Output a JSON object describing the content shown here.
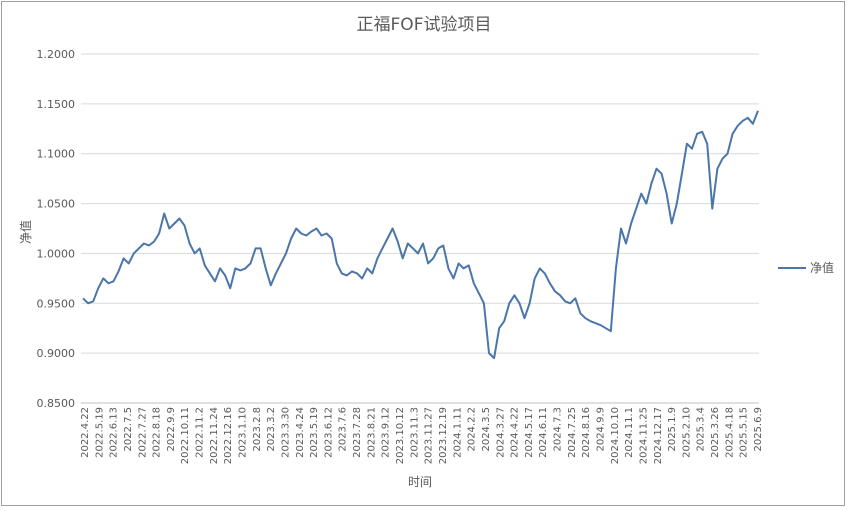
{
  "chart_data": {
    "type": "line",
    "title": "正福FOF试验项目",
    "xlabel": "时间",
    "ylabel": "净值",
    "ylim": [
      0.85,
      1.2
    ],
    "y_ticks": [
      "0.8500",
      "0.9000",
      "0.9500",
      "1.0000",
      "1.0500",
      "1.1000",
      "1.1500",
      "1.2000"
    ],
    "grid": "horizontal",
    "legend_position": "right",
    "x_tick_labels": [
      "2022.4.22",
      "2022.5.19",
      "2022.6.13",
      "2022.7.5",
      "2022.7.27",
      "2022.8.18",
      "2022.9.9",
      "2022.10.11",
      "2022.11.2",
      "2022.11.24",
      "2022.12.16",
      "2023.1.10",
      "2023.2.8",
      "2023.3.2",
      "2023.3.30",
      "2023.4.24",
      "2023.5.19",
      "2023.6.12",
      "2023.7.6",
      "2023.7.28",
      "2023.8.21",
      "2023.9.12",
      "2023.10.12",
      "2023.11.3",
      "2023.11.27",
      "2023.12.19",
      "2024.1.11",
      "2024.2.2",
      "2024.3.5",
      "2024.3.27",
      "2024.4.22",
      "2024.5.17",
      "2024.6.11",
      "2024.7.3",
      "2024.7.25",
      "2024.8.16",
      "2024.9.9",
      "2024.10.10",
      "2024.11.1",
      "2024.11.25",
      "2024.12.17",
      "2025.1.9",
      "2025.2.10",
      "2025.3.4",
      "2025.3.26",
      "2025.4.18",
      "2025.5.15",
      "2025.6.9"
    ],
    "series": [
      {
        "name": "净值",
        "color": "#4a76aa",
        "values": [
          0.955,
          0.95,
          0.952,
          0.965,
          0.975,
          0.97,
          0.972,
          0.982,
          0.995,
          0.99,
          1.0,
          1.005,
          1.01,
          1.008,
          1.012,
          1.02,
          1.04,
          1.025,
          1.03,
          1.035,
          1.028,
          1.01,
          1.0,
          1.005,
          0.988,
          0.98,
          0.972,
          0.985,
          0.978,
          0.965,
          0.985,
          0.983,
          0.985,
          0.99,
          1.005,
          1.005,
          0.985,
          0.968,
          0.98,
          0.99,
          1.0,
          1.015,
          1.025,
          1.02,
          1.018,
          1.022,
          1.025,
          1.018,
          1.02,
          1.015,
          0.99,
          0.98,
          0.978,
          0.982,
          0.98,
          0.975,
          0.985,
          0.98,
          0.995,
          1.005,
          1.015,
          1.025,
          1.012,
          0.995,
          1.01,
          1.005,
          1.0,
          1.01,
          0.99,
          0.995,
          1.005,
          1.008,
          0.985,
          0.975,
          0.99,
          0.985,
          0.988,
          0.97,
          0.96,
          0.95,
          0.9,
          0.895,
          0.925,
          0.932,
          0.95,
          0.958,
          0.95,
          0.935,
          0.95,
          0.975,
          0.985,
          0.98,
          0.97,
          0.962,
          0.958,
          0.952,
          0.95,
          0.955,
          0.94,
          0.935,
          0.932,
          0.93,
          0.928,
          0.925,
          0.922,
          0.985,
          1.025,
          1.01,
          1.03,
          1.045,
          1.06,
          1.05,
          1.07,
          1.085,
          1.08,
          1.06,
          1.03,
          1.05,
          1.08,
          1.11,
          1.105,
          1.12,
          1.122,
          1.11,
          1.045,
          1.085,
          1.095,
          1.1,
          1.12,
          1.128,
          1.133,
          1.136,
          1.13,
          1.143
        ]
      }
    ]
  }
}
